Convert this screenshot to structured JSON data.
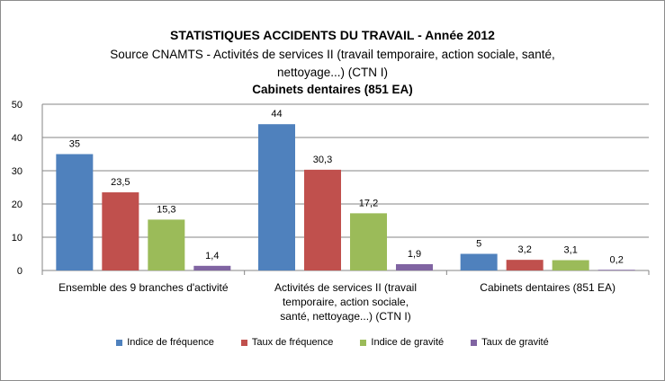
{
  "chart_data": {
    "type": "bar",
    "title": "STATISTIQUES ACCIDENTS DU TRAVAIL - Année 2012",
    "subtitle": "Source CNAMTS - Activités de services II (travail temporaire, action sociale, santé, nettoyage...) (CTN I)",
    "subtitle2": "Cabinets dentaires (851 EA)",
    "categories": [
      "Ensemble des 9 branches d'activité",
      "Activités de services II (travail temporaire, action sociale, santé, nettoyage...) (CTN I)",
      "Cabinets dentaires (851 EA)"
    ],
    "series": [
      {
        "name": "Indice de fréquence",
        "color": "#4f81bd",
        "values": [
          35,
          44,
          5
        ],
        "labels": [
          "35",
          "44",
          "5"
        ]
      },
      {
        "name": "Taux de fréquence",
        "color": "#c0504d",
        "values": [
          23.5,
          30.3,
          3.2
        ],
        "labels": [
          "23,5",
          "30,3",
          "3,2"
        ]
      },
      {
        "name": "Indice de gravité",
        "color": "#9bbb59",
        "values": [
          15.3,
          17.2,
          3.1
        ],
        "labels": [
          "15,3",
          "17,2",
          "3,1"
        ]
      },
      {
        "name": "Taux de gravité",
        "color": "#8064a2",
        "values": [
          1.4,
          1.9,
          0.2
        ],
        "labels": [
          "1,4",
          "1,9",
          "0,2"
        ]
      }
    ],
    "ylim": [
      0,
      50
    ],
    "yticks": [
      0,
      10,
      20,
      30,
      40,
      50
    ],
    "grid": true,
    "legend": "bottom"
  }
}
